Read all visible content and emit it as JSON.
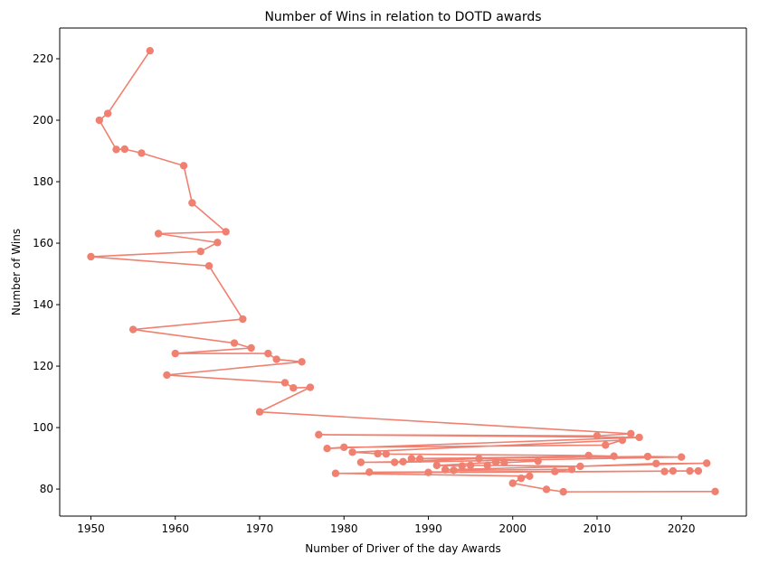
{
  "chart_data": {
    "type": "line",
    "title": "Number of Wins in relation to DOTD awards",
    "xlabel": "Number of Driver of the day Awards",
    "ylabel": "Number of Wins",
    "xlim": [
      1946.3,
      2027.7
    ],
    "ylim": [
      71.2,
      230.0
    ],
    "xticks": [
      1950,
      1960,
      1970,
      1980,
      1990,
      2000,
      2010,
      2020
    ],
    "yticks": [
      80,
      100,
      120,
      140,
      160,
      180,
      200,
      220
    ],
    "grid": false,
    "color": "#F08070",
    "series": [
      {
        "x": [
          1957,
          1952,
          1951,
          1953,
          1954,
          1956,
          1961,
          1962,
          1966,
          1958,
          1965,
          1963,
          1950,
          1964,
          1968,
          1955,
          1967,
          1969,
          1960,
          1971,
          1972,
          1975,
          1959,
          1973,
          1974,
          1976,
          1970,
          2014,
          2010,
          1977,
          2015,
          1978,
          1980,
          2011,
          2013,
          1981,
          1984,
          1985,
          2009,
          2012,
          1988,
          1989,
          2016,
          2020,
          1986,
          1982,
          1987,
          1996,
          2003,
          1999,
          1998,
          1991,
          1994,
          1995,
          1997,
          2008,
          2017,
          2023,
          1992,
          1993,
          2007,
          2005,
          1983,
          2018,
          2019,
          2021,
          2022,
          1990,
          1979,
          2002,
          2001,
          2000,
          2004,
          2006,
          2024
        ],
        "y": [
          222.6,
          202.2,
          200.0,
          190.5,
          190.6,
          189.3,
          185.2,
          173.1,
          163.7,
          163.1,
          160.2,
          157.3,
          155.6,
          152.6,
          135.3,
          131.9,
          127.5,
          125.9,
          124.1,
          124.1,
          122.2,
          121.4,
          117.1,
          114.6,
          112.9,
          113.1,
          105.1,
          98.0,
          97.3,
          97.7,
          96.8,
          93.2,
          93.6,
          94.3,
          95.9,
          92.0,
          91.5,
          91.4,
          90.9,
          90.7,
          89.9,
          89.8,
          90.6,
          90.4,
          88.7,
          88.7,
          88.9,
          89.9,
          89.1,
          88.6,
          88.7,
          87.7,
          87.5,
          87.7,
          87.7,
          87.4,
          88.3,
          88.4,
          86.3,
          86.1,
          86.4,
          85.7,
          85.5,
          85.7,
          85.9,
          85.9,
          85.9,
          85.4,
          85.1,
          84.2,
          83.5,
          81.9,
          79.9,
          79.1,
          79.2
        ]
      }
    ]
  }
}
